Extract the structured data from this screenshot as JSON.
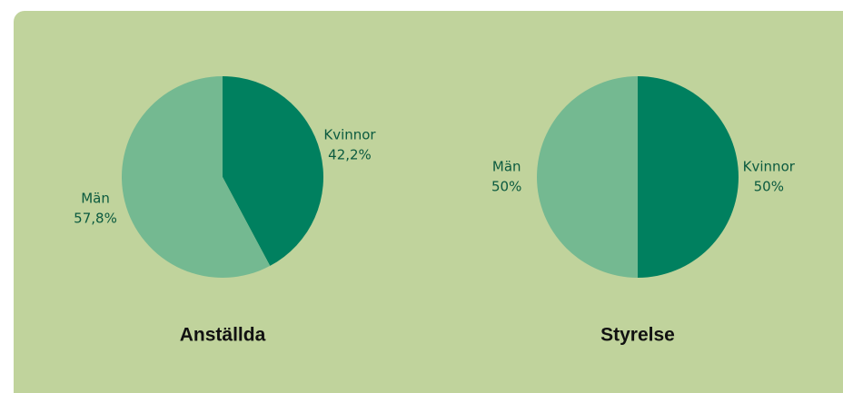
{
  "chart_data": [
    {
      "type": "pie",
      "title": "Anställda",
      "categories": [
        "Kvinnor",
        "Män"
      ],
      "values": [
        42.2,
        57.8
      ],
      "value_labels": [
        "42,2%",
        "57,8%"
      ],
      "colors": [
        "#00805f",
        "#74b991"
      ]
    },
    {
      "type": "pie",
      "title": "Styrelse",
      "categories": [
        "Kvinnor",
        "Män"
      ],
      "values": [
        50,
        50
      ],
      "value_labels": [
        "50%",
        "50%"
      ],
      "colors": [
        "#00805f",
        "#74b991"
      ]
    }
  ]
}
